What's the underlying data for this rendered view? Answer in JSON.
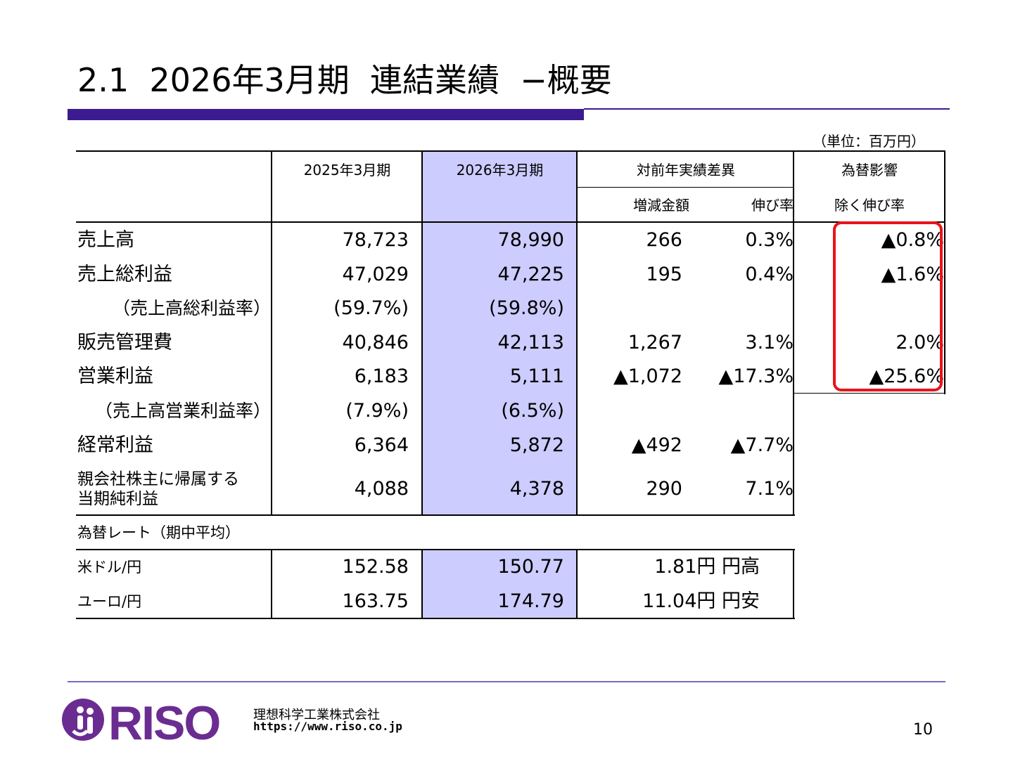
{
  "title": "2.1  2026年3月期  連結業績  −概要",
  "unit": "（単位：百万円）",
  "headers": {
    "prev": "2025年3月期",
    "curr": "2026年3月期",
    "yoy": "対前年実績差異",
    "diff": "増減金額",
    "growth": "伸び率",
    "fx1": "為替影響",
    "fx2": "除く伸び率"
  },
  "rows": [
    {
      "label": "売上高",
      "prev": "78,723",
      "curr": "78,990",
      "diff": "266",
      "growth": "0.3%",
      "fx": "▲0.8%"
    },
    {
      "label": "売上総利益",
      "prev": "47,029",
      "curr": "47,225",
      "diff": "195",
      "growth": "0.4%",
      "fx": "▲1.6%"
    },
    {
      "label": "（売上高総利益率）",
      "prev": "(59.7%)",
      "curr": "(59.8%)",
      "diff": "",
      "growth": "",
      "fx": ""
    },
    {
      "label": "販売管理費",
      "prev": "40,846",
      "curr": "42,113",
      "diff": "1,267",
      "growth": "3.1%",
      "fx": "2.0%"
    },
    {
      "label": "営業利益",
      "prev": "6,183",
      "curr": "5,111",
      "diff": "▲1,072",
      "growth": "▲17.3%",
      "fx": "▲25.6%"
    },
    {
      "label": "（売上高営業利益率）",
      "prev": "(7.9%)",
      "curr": "(6.5%)",
      "diff": "",
      "growth": "",
      "fx": ""
    },
    {
      "label": "経常利益",
      "prev": "6,364",
      "curr": "5,872",
      "diff": "▲492",
      "growth": "▲7.7%",
      "fx": ""
    },
    {
      "label1": "親会社株主に帰属する",
      "label2": "当期純利益",
      "prev": "4,088",
      "curr": "4,378",
      "diff": "290",
      "growth": "7.1%",
      "fx": ""
    }
  ],
  "fx_title": "為替レート（期中平均）",
  "fx_rows": [
    {
      "label": "米ドル/円",
      "prev": "152.58",
      "curr": "150.77",
      "diff": "1.81円 円高"
    },
    {
      "label": "ユーロ/円",
      "prev": "163.75",
      "curr": "174.79",
      "diff": "11.04円 円安"
    }
  ],
  "footer": {
    "company": "理想科学工業株式会社",
    "url": "https://www.riso.co.jp",
    "page": "10",
    "logo_text": "RISO"
  },
  "colors": {
    "accent": "#3c1a8f",
    "highlight": "#ccccff",
    "alert": "#e8141c",
    "logo": "#6b2c91"
  }
}
